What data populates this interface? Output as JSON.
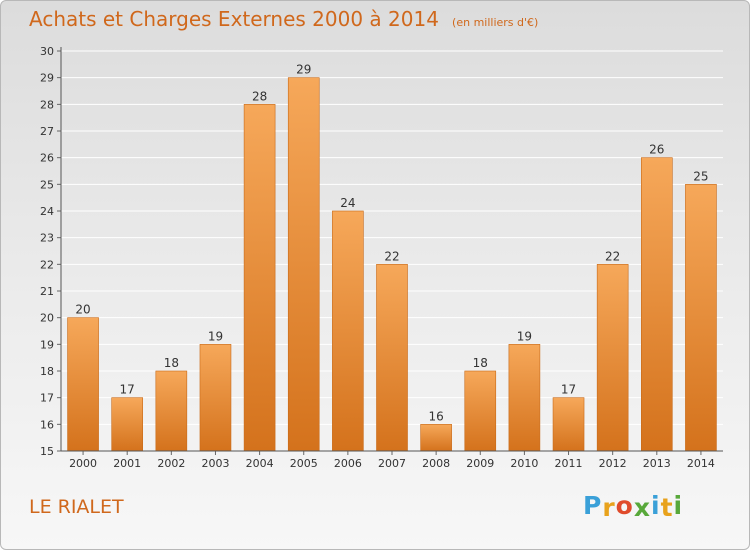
{
  "chart_data": {
    "type": "bar",
    "title": "Achats et Charges Externes 2000 à 2014",
    "unit_note": "(en milliers d'€)",
    "categories": [
      "2000",
      "2001",
      "2002",
      "2003",
      "2004",
      "2005",
      "2006",
      "2007",
      "2008",
      "2009",
      "2010",
      "2011",
      "2012",
      "2013",
      "2014"
    ],
    "values": [
      20,
      17,
      18,
      19,
      28,
      29,
      24,
      22,
      16,
      18,
      19,
      17,
      22,
      26,
      25
    ],
    "ylim": [
      15,
      30
    ],
    "yticks": [
      15,
      16,
      17,
      18,
      19,
      20,
      21,
      22,
      23,
      24,
      25,
      26,
      27,
      28,
      29,
      30
    ],
    "grid": true,
    "xlabel": "",
    "ylabel": "",
    "colors": {
      "bar_light": "#f6a85a",
      "bar_dark": "#d4721c",
      "title": "#d0681c",
      "grid": "#ffffff"
    }
  },
  "footer": {
    "location": "LE RIALET",
    "logo_letters": [
      "P",
      "r",
      "o",
      "x",
      "i",
      "t",
      "i"
    ],
    "logo_colors": [
      "#3aa0d8",
      "#e8a21c",
      "#e04b2b",
      "#58a83a",
      "#3aa0d8",
      "#e8a21c",
      "#58a83a"
    ]
  }
}
